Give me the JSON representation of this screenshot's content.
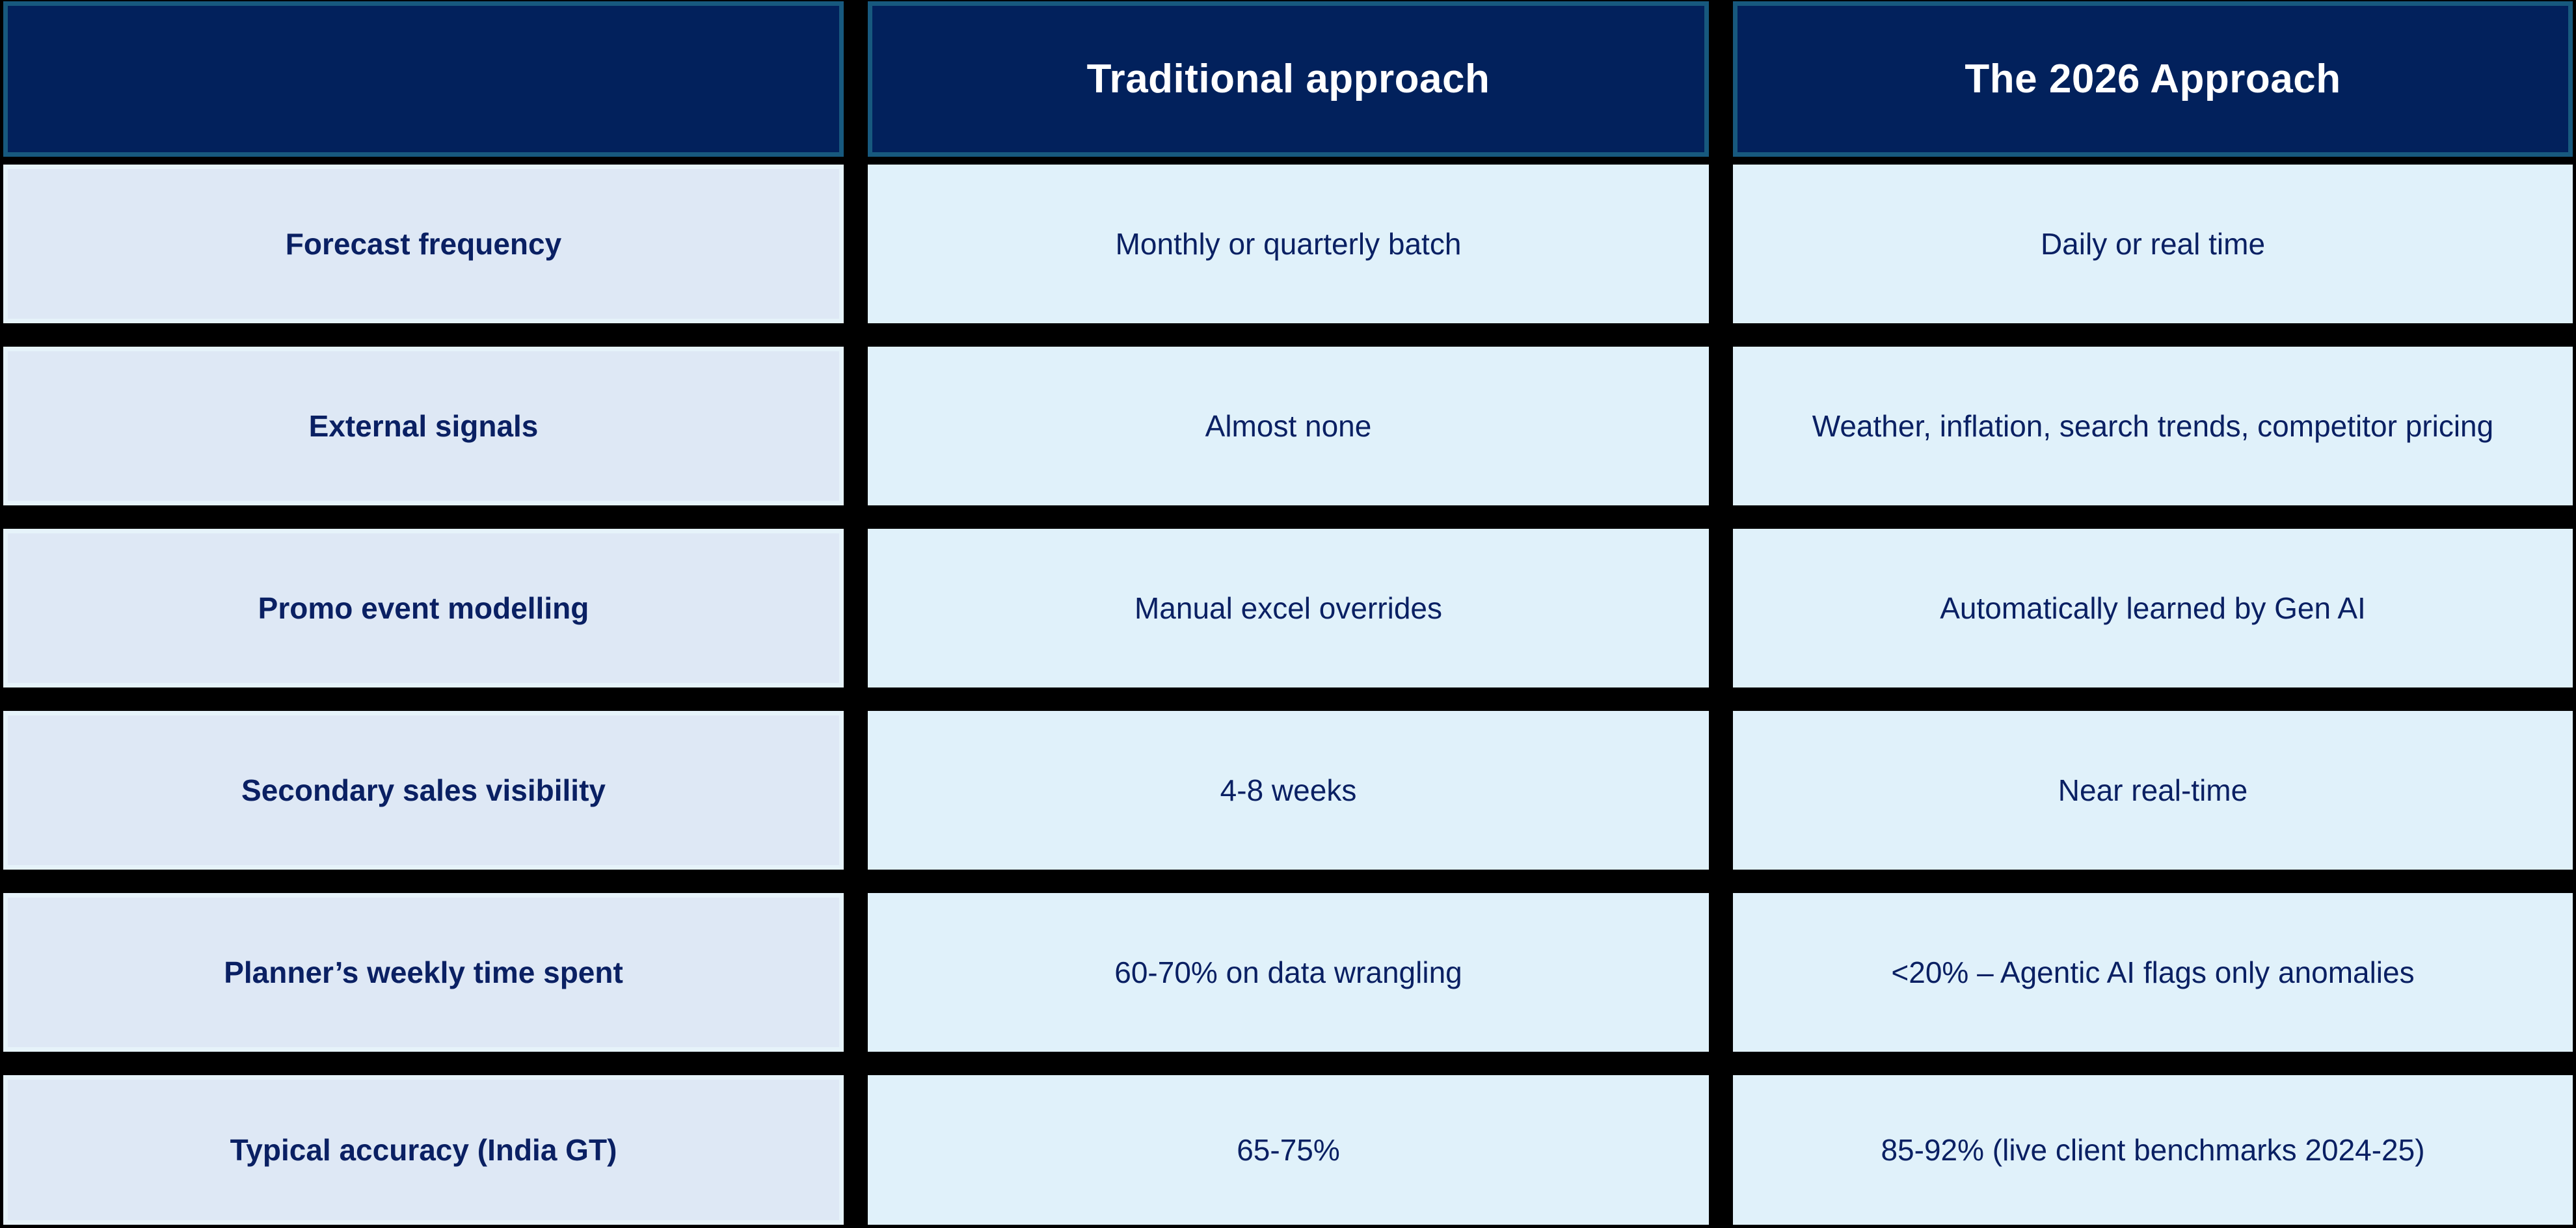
{
  "table": {
    "header": {
      "blank": "",
      "traditional": "Traditional approach",
      "approach2026": "The 2026 Approach"
    },
    "rows": [
      {
        "label": "Forecast frequency",
        "traditional": "Monthly or quarterly batch",
        "approach2026": "Daily or real time"
      },
      {
        "label": "External signals",
        "traditional": "Almost none",
        "approach2026": "Weather, inflation, search trends, competitor pricing"
      },
      {
        "label": "Promo event modelling",
        "traditional": "Manual excel overrides",
        "approach2026": "Automatically learned by Gen AI"
      },
      {
        "label": "Secondary sales visibility",
        "traditional": "4-8 weeks",
        "approach2026": "Near real-time"
      },
      {
        "label": "Planner’s weekly time spent",
        "traditional": "60-70% on data wrangling",
        "approach2026": "<20% – Agentic AI flags only anomalies"
      },
      {
        "label": "Typical accuracy (India GT)",
        "traditional": "65-75%",
        "approach2026": "85-92% (live client benchmarks 2024-25)"
      }
    ]
  },
  "colors": {
    "background": "#000000",
    "header_fill": "#02215C",
    "header_border": "#17597E",
    "header_text": "#FFFFFF",
    "label_fill": "#DEE8F5",
    "label_border": "#E6F3FA",
    "value_fill": "#E0F1FA",
    "body_text": "#0A2063"
  }
}
